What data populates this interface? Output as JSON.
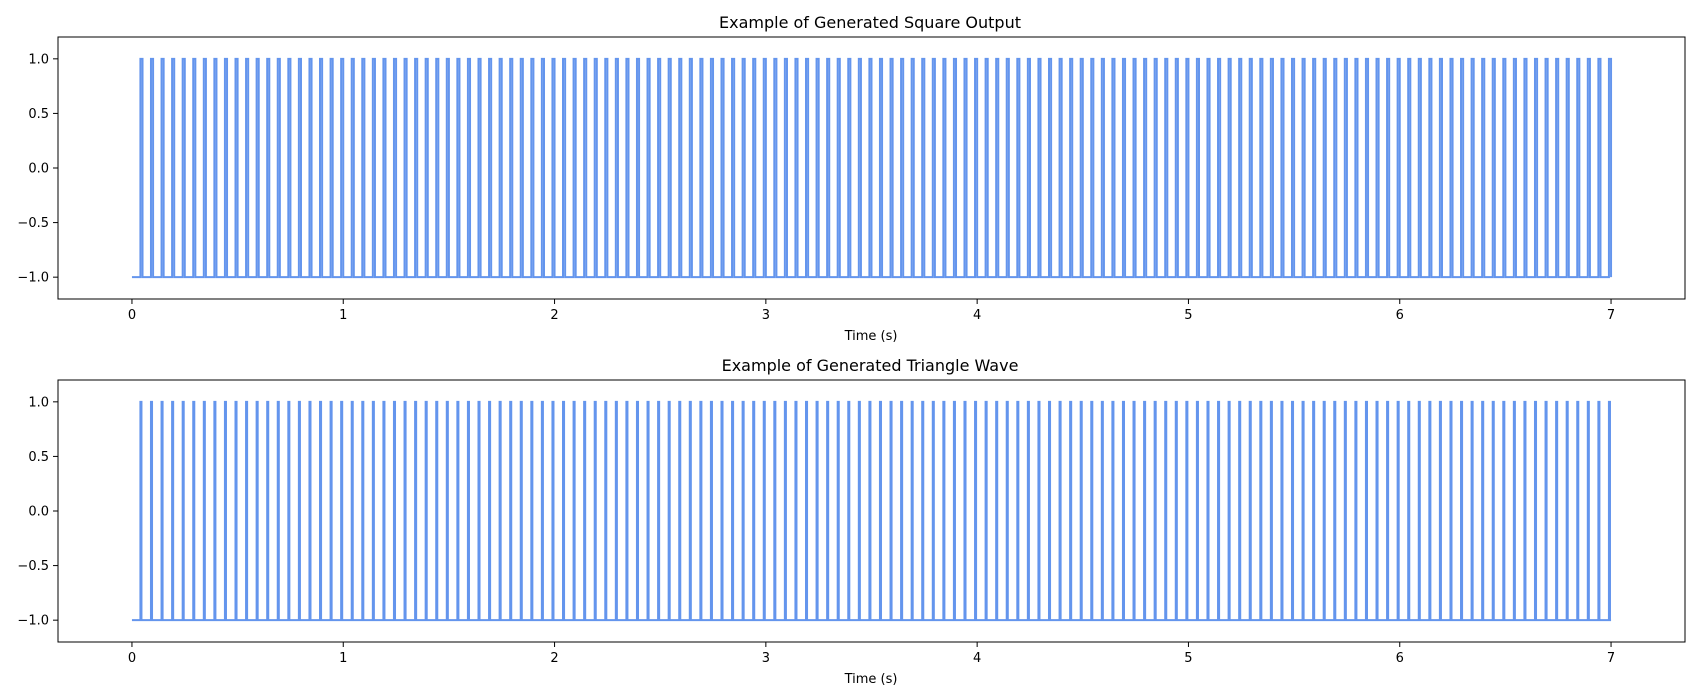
{
  "chart_data": [
    {
      "type": "line",
      "title": "Example of Generated Square Output",
      "xlabel": "Time (s)",
      "ylabel": "",
      "xlim": [
        -0.35,
        7.35
      ],
      "ylim": [
        -1.2,
        1.2
      ],
      "xticks": [
        0,
        1,
        2,
        3,
        4,
        5,
        6,
        7
      ],
      "xtick_labels": [
        "0",
        "1",
        "2",
        "3",
        "4",
        "5",
        "6",
        "7"
      ],
      "yticks": [
        1.0,
        0.5,
        0.0,
        -0.5,
        -1.0
      ],
      "ytick_labels": [
        "1.0",
        "0.5",
        "0.0",
        "−0.5",
        "−1.0"
      ],
      "grid": false,
      "waveform": {
        "shape": "pulse",
        "t_start": 0,
        "t_end": 7,
        "period": 0.05,
        "first_rise": 0.04,
        "high_duration": 0.01,
        "low": -1,
        "high": 1
      },
      "series": [
        {
          "color": "#6495ED"
        }
      ]
    },
    {
      "type": "line",
      "title": "Example of Generated Triangle Wave",
      "xlabel": "Time (s)",
      "ylabel": "",
      "xlim": [
        -0.35,
        7.35
      ],
      "ylim": [
        -1.2,
        1.2
      ],
      "xticks": [
        0,
        1,
        2,
        3,
        4,
        5,
        6,
        7
      ],
      "xtick_labels": [
        "0",
        "1",
        "2",
        "3",
        "4",
        "5",
        "6",
        "7"
      ],
      "yticks": [
        1.0,
        0.5,
        0.0,
        -0.5,
        -1.0
      ],
      "ytick_labels": [
        "1.0",
        "0.5",
        "0.0",
        "−0.5",
        "−1.0"
      ],
      "grid": false,
      "waveform": {
        "shape": "spike",
        "t_start": 0,
        "t_end": 7,
        "period": 0.05,
        "first_rise": 0.04,
        "high_duration": 0.005,
        "low": -1,
        "high": 1
      },
      "series": [
        {
          "color": "#6495ED"
        }
      ]
    }
  ]
}
